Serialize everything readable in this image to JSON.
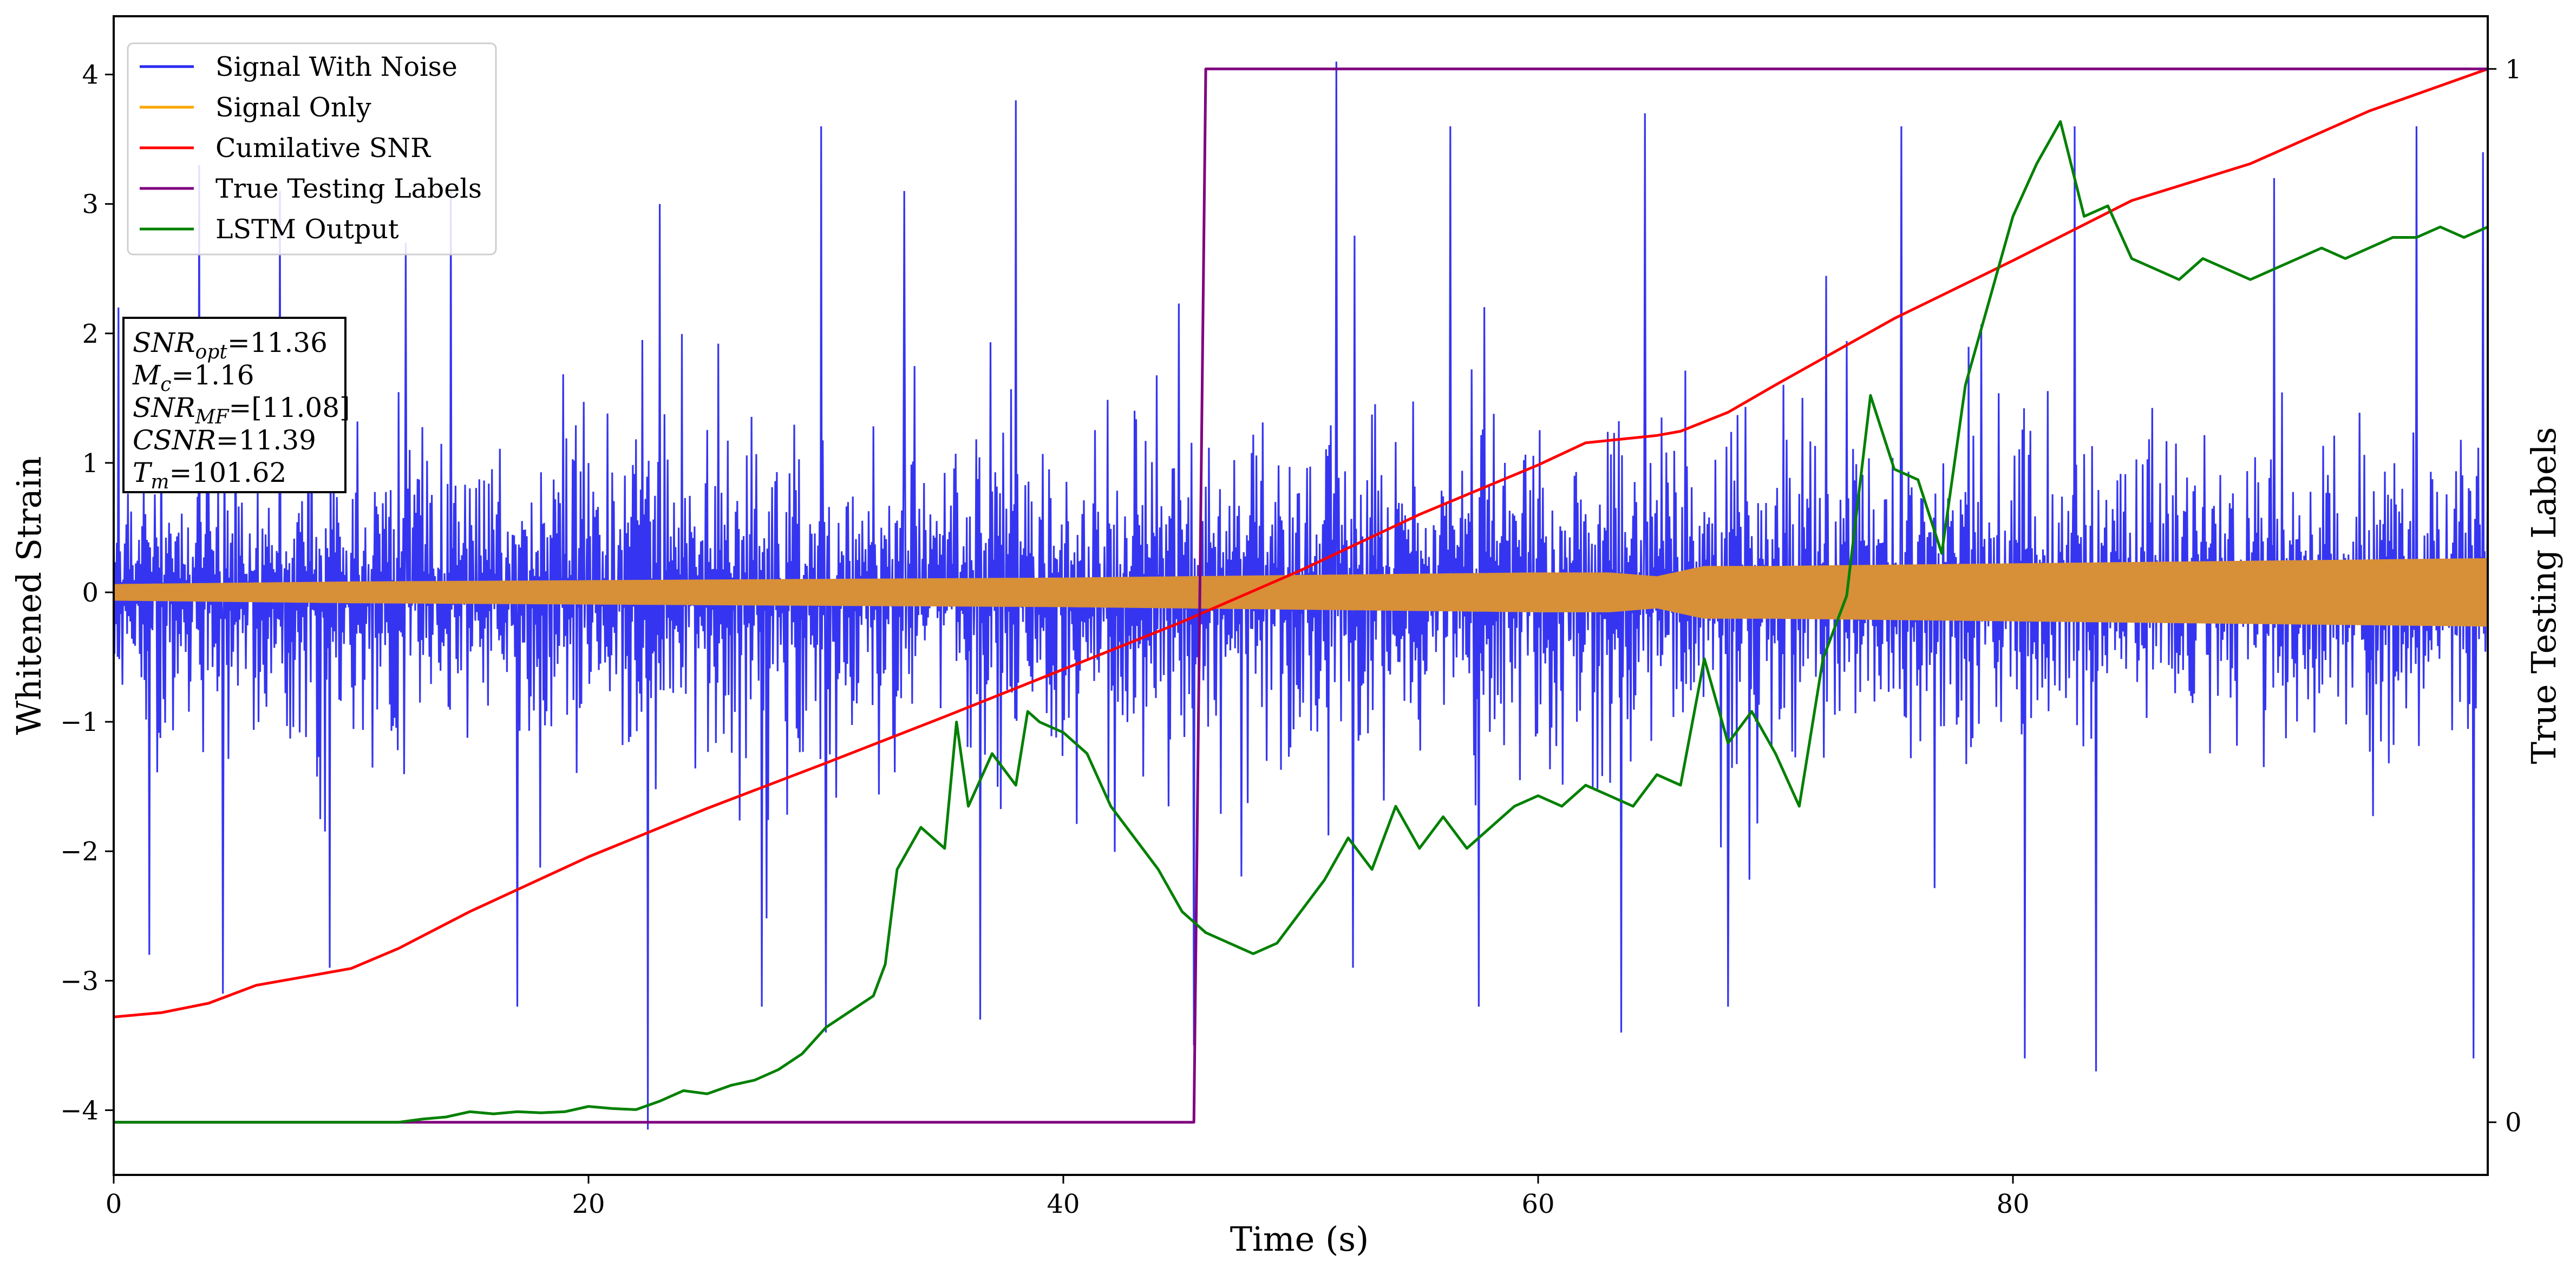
{
  "chart_data": {
    "type": "line",
    "xlabel": "Time (s)",
    "ylabel": "Whitened Strain",
    "y2label": "True Testing Labels",
    "xlim": [
      0,
      100
    ],
    "ylim": [
      -4.5,
      4.45
    ],
    "y2lim": [
      -0.05,
      1.05
    ],
    "xticks": [
      0,
      20,
      40,
      60,
      80
    ],
    "yticks": [
      -4,
      -3,
      -2,
      -1,
      0,
      1,
      2,
      3,
      4
    ],
    "y2ticks": [
      0,
      1
    ],
    "legend_position": "upper-left",
    "legend": [
      {
        "label": "Signal With Noise",
        "color": "#2a2af0"
      },
      {
        "label": "Signal Only",
        "color": "#ffa500"
      },
      {
        "label": "Cumilative SNR",
        "color": "#ff0000"
      },
      {
        "label": "True Testing Labels",
        "color": "#800080"
      },
      {
        "label": "LSTM Output",
        "color": "#008000"
      }
    ],
    "info_box": {
      "snr_opt": {
        "base": "SNR",
        "sub": "opt",
        "value": "=11.36"
      },
      "mc": {
        "base": "M",
        "sub": "c",
        "value": "=1.16"
      },
      "snr_mf": {
        "base": "SNR",
        "sub": "MF",
        "value": "=[11.08]"
      },
      "csnr": {
        "base": "CSNR",
        "sub": "",
        "value": "=11.39"
      },
      "tm": {
        "base": "T",
        "sub": "m",
        "value": "=101.62"
      }
    },
    "series": [
      {
        "name": "Signal With Noise",
        "color": "#2a2af0",
        "style": "noise-band",
        "typical_range": [
          -1.4,
          1.4
        ],
        "peaks": [
          [
            0.2,
            2.2
          ],
          [
            1.5,
            -2.8
          ],
          [
            3.6,
            3.3
          ],
          [
            4.6,
            -3.1
          ],
          [
            7.0,
            3.1
          ],
          [
            9.1,
            -2.9
          ],
          [
            12.3,
            2.7
          ],
          [
            14.2,
            3.1
          ],
          [
            17.0,
            -3.2
          ],
          [
            22.5,
            -4.15
          ],
          [
            23.0,
            3.0
          ],
          [
            27.3,
            -3.2
          ],
          [
            29.8,
            3.6
          ],
          [
            30.0,
            -3.4
          ],
          [
            33.3,
            3.1
          ],
          [
            36.5,
            -3.3
          ],
          [
            38.0,
            3.8
          ],
          [
            45.5,
            -3.5
          ],
          [
            51.5,
            4.1
          ],
          [
            52.2,
            -2.9
          ],
          [
            56.3,
            3.6
          ],
          [
            57.5,
            -3.2
          ],
          [
            63.5,
            -3.4
          ],
          [
            64.5,
            3.7
          ],
          [
            68.0,
            -3.2
          ],
          [
            75.3,
            3.6
          ],
          [
            80.5,
            -3.6
          ],
          [
            82.6,
            3.6
          ],
          [
            83.5,
            -3.7
          ],
          [
            91.0,
            3.2
          ],
          [
            97.0,
            3.6
          ],
          [
            99.4,
            -3.6
          ],
          [
            99.8,
            3.4
          ]
        ]
      },
      {
        "name": "Signal Only",
        "color": "#d78f38",
        "style": "envelope",
        "x": [
          0,
          10,
          20,
          30,
          40,
          50,
          55,
          60,
          63,
          65,
          67,
          70,
          80,
          90,
          100
        ],
        "amplitude": [
          0.06,
          0.08,
          0.09,
          0.1,
          0.11,
          0.13,
          0.14,
          0.15,
          0.15,
          0.12,
          0.2,
          0.2,
          0.22,
          0.24,
          0.26
        ]
      },
      {
        "name": "Cumilative SNR",
        "color": "#ff0000",
        "axis": "y2",
        "x": [
          0,
          2,
          4,
          6,
          8,
          10,
          12,
          15,
          20,
          25,
          30,
          35,
          40,
          45,
          50,
          55,
          60,
          62,
          65,
          66,
          68,
          70,
          75,
          80,
          85,
          90,
          95,
          100
        ],
        "y": [
          0.1,
          0.104,
          0.113,
          0.13,
          0.138,
          0.146,
          0.165,
          0.2,
          0.252,
          0.298,
          0.341,
          0.385,
          0.43,
          0.475,
          0.524,
          0.577,
          0.624,
          0.645,
          0.652,
          0.656,
          0.674,
          0.7,
          0.763,
          0.818,
          0.875,
          0.91,
          0.96,
          1.0
        ]
      },
      {
        "name": "True Testing Labels",
        "color": "#800080",
        "axis": "y2",
        "x": [
          0,
          45.5,
          46.0,
          100
        ],
        "y": [
          0,
          0,
          1,
          1
        ]
      },
      {
        "name": "LSTM Output",
        "color": "#008000",
        "axis": "y2",
        "x": [
          0,
          12,
          13,
          14,
          15,
          16,
          17,
          18,
          19,
          20,
          21,
          22,
          23,
          24,
          25,
          26,
          27,
          28,
          29,
          30,
          31,
          32,
          32.5,
          33,
          34,
          35,
          35.5,
          36,
          37,
          38,
          38.5,
          39,
          40,
          41,
          42,
          43,
          44,
          45,
          46,
          47,
          48,
          49,
          50,
          51,
          52,
          53,
          54,
          55,
          56,
          57,
          58,
          59,
          60,
          61,
          62,
          63,
          64,
          65,
          66,
          67,
          68,
          69,
          70,
          71,
          72,
          73,
          74,
          75,
          76,
          77,
          78,
          79,
          80,
          81,
          82,
          83,
          84,
          85,
          86,
          87,
          88,
          89,
          90,
          91,
          92,
          93,
          94,
          95,
          96,
          97,
          98,
          99,
          100
        ],
        "y": [
          0,
          0,
          0.003,
          0.005,
          0.01,
          0.008,
          0.01,
          0.009,
          0.01,
          0.015,
          0.013,
          0.012,
          0.02,
          0.03,
          0.027,
          0.035,
          0.04,
          0.05,
          0.065,
          0.09,
          0.105,
          0.12,
          0.15,
          0.24,
          0.28,
          0.26,
          0.38,
          0.3,
          0.35,
          0.32,
          0.39,
          0.38,
          0.37,
          0.35,
          0.3,
          0.27,
          0.24,
          0.2,
          0.18,
          0.17,
          0.16,
          0.17,
          0.2,
          0.23,
          0.27,
          0.24,
          0.3,
          0.26,
          0.29,
          0.26,
          0.28,
          0.3,
          0.31,
          0.3,
          0.32,
          0.31,
          0.3,
          0.33,
          0.32,
          0.44,
          0.36,
          0.39,
          0.35,
          0.3,
          0.44,
          0.5,
          0.69,
          0.62,
          0.61,
          0.54,
          0.7,
          0.78,
          0.86,
          0.91,
          0.95,
          0.86,
          0.87,
          0.82,
          0.81,
          0.8,
          0.82,
          0.81,
          0.8,
          0.81,
          0.82,
          0.83,
          0.82,
          0.83,
          0.84,
          0.84,
          0.85,
          0.84,
          0.85
        ]
      }
    ]
  }
}
